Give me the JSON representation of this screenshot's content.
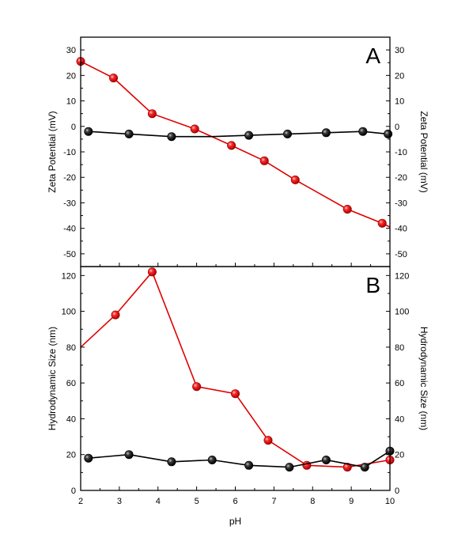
{
  "chart_data": [
    {
      "panel": "A",
      "type": "line",
      "panel_label": "A",
      "xlabel": "",
      "ylabel": "Zeta Potential (mV)",
      "ylabel_right": "Zeta Potential (mV)",
      "xlim": [
        2,
        10
      ],
      "ylim": [
        -55,
        35
      ],
      "xticks": [
        2,
        3,
        4,
        5,
        6,
        7,
        8,
        9,
        10
      ],
      "yticks": [
        30,
        20,
        10,
        0,
        -10,
        -20,
        -30,
        -40,
        -50
      ],
      "grid": false,
      "series": [
        {
          "color": "#e00000",
          "marker": "sphere",
          "x": [
            2.0,
            2.85,
            3.85,
            4.95,
            5.9,
            6.75,
            7.55,
            8.9,
            9.8,
            10.0
          ],
          "y": [
            25.5,
            19,
            5,
            -1,
            -7.5,
            -13.5,
            -21,
            -32.5,
            -38,
            -39.5
          ],
          "marked": [
            true,
            true,
            true,
            true,
            true,
            true,
            true,
            true,
            true,
            false
          ]
        },
        {
          "color": "#000000",
          "marker": "sphere",
          "x": [
            2.2,
            3.25,
            4.35,
            5.4,
            6.35,
            7.35,
            8.35,
            9.3,
            9.95
          ],
          "y": [
            -2,
            -3,
            -4,
            -4,
            -3.5,
            -3,
            -2.5,
            -2,
            -3
          ],
          "marked": [
            true,
            true,
            true,
            false,
            true,
            true,
            true,
            true,
            true
          ]
        }
      ]
    },
    {
      "panel": "B",
      "type": "line",
      "panel_label": "B",
      "xlabel": "pH",
      "ylabel": "Hydrodynamic Size (nm)",
      "ylabel_right": "Hydrodynamic Size (nm)",
      "xlim": [
        2,
        10
      ],
      "ylim": [
        0,
        125
      ],
      "xticks": [
        2,
        3,
        4,
        5,
        6,
        7,
        8,
        9,
        10
      ],
      "yticks": [
        0,
        20,
        40,
        60,
        80,
        100,
        120
      ],
      "grid": false,
      "series": [
        {
          "color": "#e00000",
          "marker": "sphere",
          "x": [
            2.0,
            2.9,
            3.85,
            5.0,
            6.0,
            6.85,
            7.85,
            8.9,
            10.0
          ],
          "y": [
            80,
            98,
            122,
            58,
            54,
            28,
            14,
            13,
            17
          ],
          "marked": [
            false,
            true,
            true,
            true,
            true,
            true,
            true,
            true,
            true
          ]
        },
        {
          "color": "#000000",
          "marker": "sphere",
          "x": [
            2.2,
            3.25,
            4.35,
            5.4,
            6.35,
            7.4,
            8.35,
            9.35,
            10.0
          ],
          "y": [
            18,
            20,
            16,
            17,
            14,
            13,
            17,
            13,
            22
          ],
          "marked": [
            true,
            true,
            true,
            true,
            true,
            true,
            true,
            true,
            true
          ]
        }
      ]
    }
  ]
}
